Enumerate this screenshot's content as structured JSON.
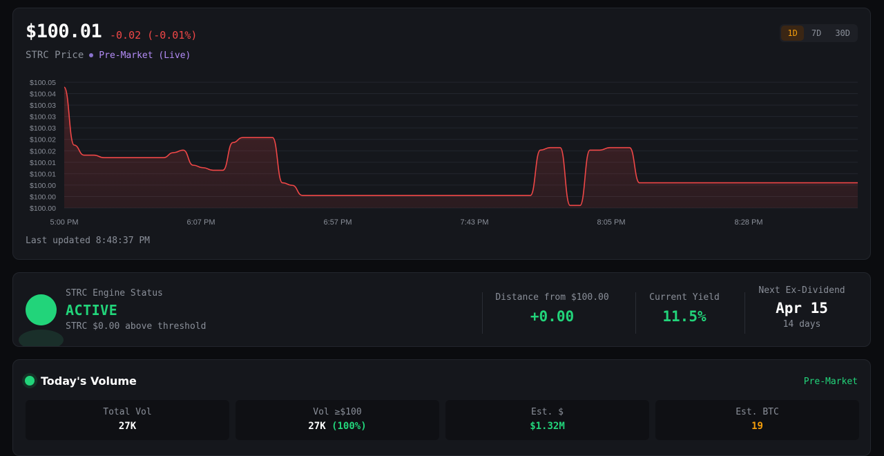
{
  "header": {
    "price": "$100.01",
    "change": "-0.02 (-0.01%)",
    "label": "STRC Price",
    "session": "Pre-Market (Live)",
    "ranges": [
      "1D",
      "7D",
      "30D"
    ],
    "active_range": "1D",
    "last_updated": "Last updated 8:48:37 PM"
  },
  "chart_data": {
    "type": "area",
    "ylim": [
      100.0,
      100.05
    ],
    "y_ticks": [
      "$100.05",
      "$100.04",
      "$100.03",
      "$100.03",
      "$100.03",
      "$100.02",
      "$100.02",
      "$100.01",
      "$100.01",
      "$100.00",
      "$100.00",
      "$100.00"
    ],
    "x_ticks": [
      "5:00 PM",
      "6:07 PM",
      "6:57 PM",
      "7:43 PM",
      "8:05 PM",
      "8:28 PM"
    ],
    "line_color": "#f04747",
    "x": [
      0,
      1,
      2,
      3,
      4,
      5,
      6,
      7,
      8,
      9,
      10,
      11,
      12,
      13,
      14,
      15,
      16,
      17,
      18,
      19,
      20,
      21,
      22,
      23,
      24,
      25,
      26,
      27,
      28,
      29,
      30,
      31,
      32,
      33,
      34,
      35,
      36,
      37,
      38,
      39,
      40,
      41,
      42,
      43,
      44,
      45,
      46,
      47,
      48,
      49,
      50,
      51,
      52,
      53,
      54,
      55,
      56,
      57,
      58,
      59,
      60,
      61,
      62,
      63,
      64,
      65,
      66,
      67,
      68,
      69,
      70,
      71,
      72,
      73,
      74,
      75,
      76,
      77,
      78,
      79,
      80
    ],
    "y": [
      100.048,
      100.025,
      100.021,
      100.021,
      100.02,
      100.02,
      100.02,
      100.02,
      100.02,
      100.02,
      100.02,
      100.022,
      100.023,
      100.017,
      100.016,
      100.015,
      100.015,
      100.026,
      100.028,
      100.028,
      100.028,
      100.028,
      100.01,
      100.009,
      100.005,
      100.005,
      100.005,
      100.005,
      100.005,
      100.005,
      100.005,
      100.005,
      100.005,
      100.005,
      100.005,
      100.005,
      100.005,
      100.005,
      100.005,
      100.005,
      100.005,
      100.005,
      100.005,
      100.005,
      100.005,
      100.005,
      100.005,
      100.005,
      100.023,
      100.024,
      100.024,
      100.001,
      100.001,
      100.023,
      100.023,
      100.024,
      100.024,
      100.024,
      100.01,
      100.01,
      100.01,
      100.01,
      100.01,
      100.01,
      100.01,
      100.01,
      100.01,
      100.01,
      100.01,
      100.01,
      100.01,
      100.01,
      100.01,
      100.01,
      100.01,
      100.01,
      100.01,
      100.01,
      100.01,
      100.01,
      100.01
    ]
  },
  "engine": {
    "title": "STRC Engine Status",
    "status": "ACTIVE",
    "sub": "STRC $0.00 above threshold",
    "distance_label": "Distance from $100.00",
    "distance_value": "+0.00",
    "yield_label": "Current Yield",
    "yield_value": "11.5%",
    "exdiv_label": "Next Ex-Dividend",
    "exdiv_value": "Apr 15",
    "exdiv_days": "14 days"
  },
  "volume": {
    "title": "Today's Volume",
    "badge": "Pre-Market",
    "tiles": [
      {
        "label": "Total Vol",
        "value": "27K"
      },
      {
        "label": "Vol ≥$100",
        "value": "27K",
        "extra": "(100%)"
      },
      {
        "label": "Est. $",
        "value": "$1.32M"
      },
      {
        "label": "Est. BTC",
        "value": "19"
      }
    ]
  }
}
